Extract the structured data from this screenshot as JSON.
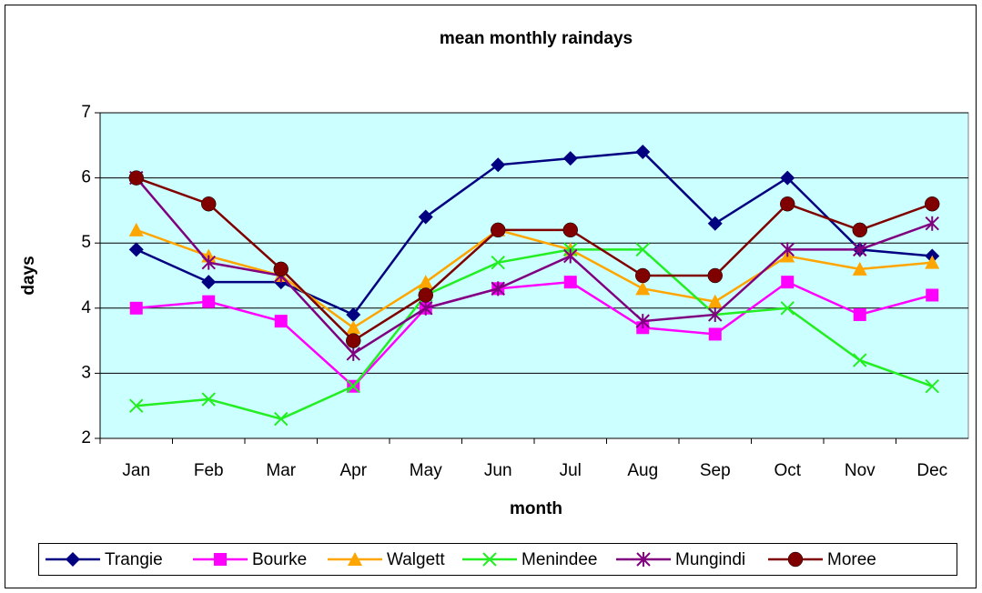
{
  "chart_data": {
    "type": "line",
    "title": "mean monthly raindays",
    "x_label": "month",
    "y_label": "days",
    "categories": [
      "Jan",
      "Feb",
      "Mar",
      "Apr",
      "May",
      "Jun",
      "Jul",
      "Aug",
      "Sep",
      "Oct",
      "Nov",
      "Dec"
    ],
    "ylim": [
      2,
      7
    ],
    "yticks": [
      2,
      3,
      4,
      5,
      6,
      7
    ],
    "grid": true,
    "legend": "bottom",
    "plot_background": "#ccffff",
    "series": [
      {
        "name": "Trangie",
        "color": "#000080",
        "marker": "diamond",
        "values": [
          4.9,
          4.4,
          4.4,
          3.9,
          5.4,
          6.2,
          6.3,
          6.4,
          5.3,
          6.0,
          4.9,
          4.8
        ]
      },
      {
        "name": "Bourke",
        "color": "#ff00ff",
        "marker": "square",
        "values": [
          4.0,
          4.1,
          3.8,
          2.8,
          4.0,
          4.3,
          4.4,
          3.7,
          3.6,
          4.4,
          3.9,
          4.2
        ]
      },
      {
        "name": "Walgett",
        "color": "#ffa500",
        "marker": "triangle",
        "values": [
          5.2,
          4.8,
          4.5,
          3.7,
          4.4,
          5.2,
          4.9,
          4.3,
          4.1,
          4.8,
          4.6,
          4.7
        ]
      },
      {
        "name": "Menindee",
        "color": "#22ee22",
        "marker": "x",
        "values": [
          2.5,
          2.6,
          2.3,
          2.8,
          4.2,
          4.7,
          4.9,
          4.9,
          3.9,
          4.0,
          3.2,
          2.8
        ]
      },
      {
        "name": "Mungindi",
        "color": "#800080",
        "marker": "star",
        "values": [
          6.0,
          4.7,
          4.5,
          3.3,
          4.0,
          4.3,
          4.8,
          3.8,
          3.9,
          4.9,
          4.9,
          5.3
        ]
      },
      {
        "name": "Moree",
        "color": "#800000",
        "marker": "circle",
        "values": [
          6.0,
          5.6,
          4.6,
          3.5,
          4.2,
          5.2,
          5.2,
          4.5,
          4.5,
          5.6,
          5.2,
          5.6
        ]
      }
    ]
  }
}
